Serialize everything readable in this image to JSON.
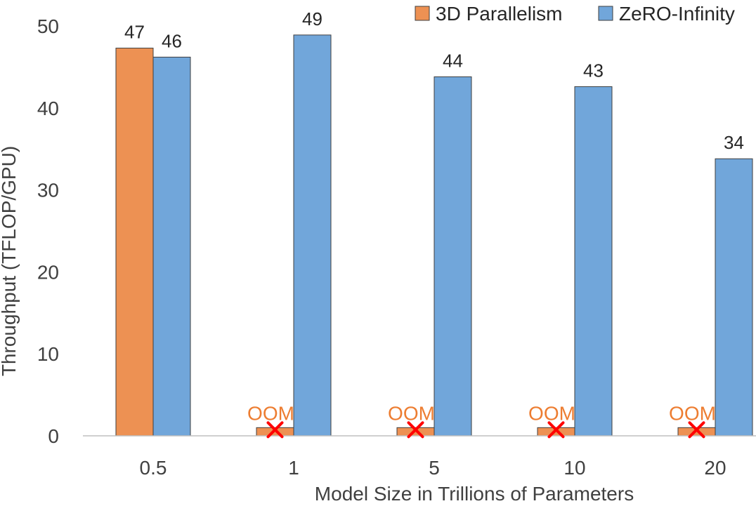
{
  "chart_data": {
    "type": "bar",
    "title": "",
    "xlabel": "Model Size in Trillions of Parameters",
    "ylabel": "Throughput (TFLOP/GPU)",
    "categories": [
      "0.5",
      "1",
      "5",
      "10",
      "20"
    ],
    "yticks": [
      "0",
      "10",
      "20",
      "30",
      "40",
      "50"
    ],
    "ylim": [
      0,
      50
    ],
    "grid": false,
    "legend_position": "top-right",
    "series": [
      {
        "name": "3D Parallelism",
        "color": "#ED9153",
        "values": [
          47.3,
          1,
          1,
          1,
          1
        ],
        "labels": [
          "47",
          "",
          "",
          "",
          ""
        ],
        "oom": [
          false,
          true,
          true,
          true,
          true
        ]
      },
      {
        "name": "ZeRO-Infinity",
        "color": "#71A6DA",
        "values": [
          46.2,
          48.9,
          43.8,
          42.6,
          33.8
        ],
        "labels": [
          "46",
          "49",
          "44",
          "43",
          "34"
        ]
      }
    ],
    "annotations": {
      "oom_text": "OOM",
      "oom_text_color": "#ED7D31",
      "oom_marker_color": "#FF0000"
    }
  }
}
